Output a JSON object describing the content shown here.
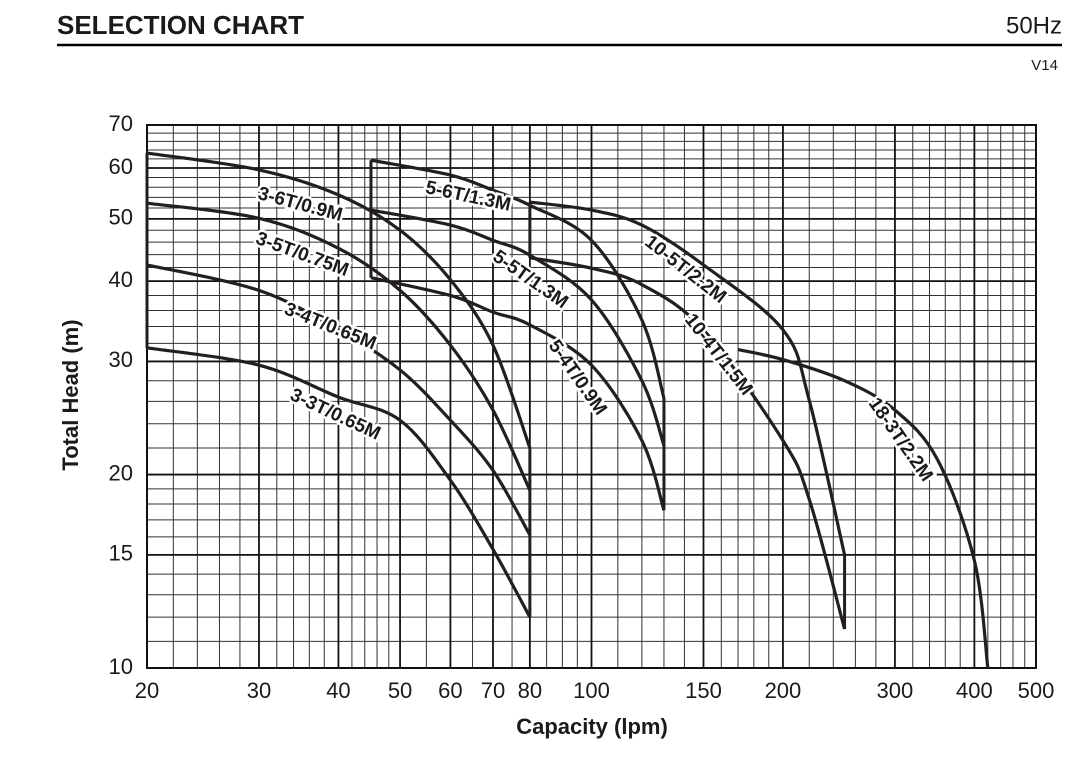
{
  "header": {
    "title": "SELECTION CHART",
    "frequency": "50Hz",
    "version": "V14"
  },
  "chart_data": {
    "type": "line",
    "x_label": "Capacity  (lpm)",
    "y_label": "Total Head  (m)",
    "xscale": "log",
    "yscale": "log",
    "grid": true,
    "color": "#231f20",
    "xlim": [
      20,
      500
    ],
    "ylim": [
      10,
      70
    ],
    "xticks": [
      20,
      30,
      40,
      50,
      60,
      70,
      80,
      100,
      150,
      200,
      300,
      400,
      500
    ],
    "yticks": [
      10,
      15,
      20,
      30,
      40,
      50,
      60,
      70
    ],
    "xgrid": [
      22,
      24,
      26,
      28,
      32,
      34,
      36,
      38,
      42,
      44,
      46,
      48,
      55,
      65,
      75,
      85,
      90,
      95,
      110,
      120,
      130,
      140,
      160,
      170,
      180,
      190,
      220,
      240,
      260,
      280,
      320,
      340,
      360,
      380,
      420,
      440,
      460,
      480
    ],
    "ygrid": [
      11,
      12,
      13,
      14,
      16,
      17,
      18,
      19,
      22,
      24,
      26,
      28,
      32,
      34,
      36,
      38,
      42,
      44,
      46,
      48,
      52,
      54,
      56,
      58,
      62,
      64,
      66,
      68
    ],
    "series": [
      {
        "name": "3-3T/0.65M",
        "x": [
          20,
          30,
          40,
          50,
          60,
          70,
          80
        ],
        "values": [
          31.5,
          29.6,
          26.4,
          24.3,
          19.6,
          15.3,
          12
        ]
      },
      {
        "name": "3-4T/0.65M",
        "x": [
          20,
          30,
          40,
          50,
          60,
          70,
          80
        ],
        "values": [
          42.4,
          38.7,
          33.6,
          29.1,
          24.3,
          20.3,
          16.1
        ]
      },
      {
        "name": "3-5T/0.75M",
        "x": [
          20,
          30,
          40,
          50,
          60,
          70,
          80
        ],
        "values": [
          52.9,
          50.1,
          45,
          38.7,
          31.8,
          25.2,
          18.9
        ]
      },
      {
        "name": "3-6T/0.9M",
        "x": [
          20,
          30,
          40,
          50,
          60,
          70,
          80
        ],
        "values": [
          63.3,
          59.6,
          54.5,
          48,
          40.2,
          31.8,
          22
        ]
      },
      {
        "name": "5-4T/0.9M",
        "x": [
          45,
          60,
          70,
          80,
          100,
          120,
          130
        ],
        "values": [
          40.5,
          38,
          35.8,
          34.2,
          29.6,
          22.6,
          17.6
        ]
      },
      {
        "name": "5-5T/1.3M",
        "x": [
          45,
          60,
          70,
          80,
          100,
          120,
          130
        ],
        "values": [
          51.6,
          48.9,
          46.3,
          43.9,
          37.4,
          28,
          22.2
        ]
      },
      {
        "name": "5-6T/1.3M",
        "x": [
          45,
          60,
          70,
          80,
          100,
          120,
          130
        ],
        "values": [
          61.7,
          58.5,
          55.4,
          52.5,
          46.3,
          34.8,
          26.3
        ]
      },
      {
        "name": "10-4T/1.5M",
        "x": [
          80,
          100,
          120,
          150,
          200,
          220,
          250
        ],
        "values": [
          43.5,
          41.9,
          39.5,
          33.6,
          22.6,
          18.3,
          11.5
        ]
      },
      {
        "name": "10-5T/2.2M",
        "x": [
          80,
          100,
          120,
          150,
          200,
          220,
          250
        ],
        "values": [
          53.1,
          51.6,
          48.9,
          42.4,
          33.6,
          26.1,
          15
        ]
      },
      {
        "name": "18-3T/2.2M",
        "x": [
          170,
          200,
          250,
          300,
          350,
          400,
          420
        ],
        "values": [
          31.3,
          30.2,
          28,
          25.2,
          21.1,
          14.7,
          10
        ]
      }
    ]
  }
}
